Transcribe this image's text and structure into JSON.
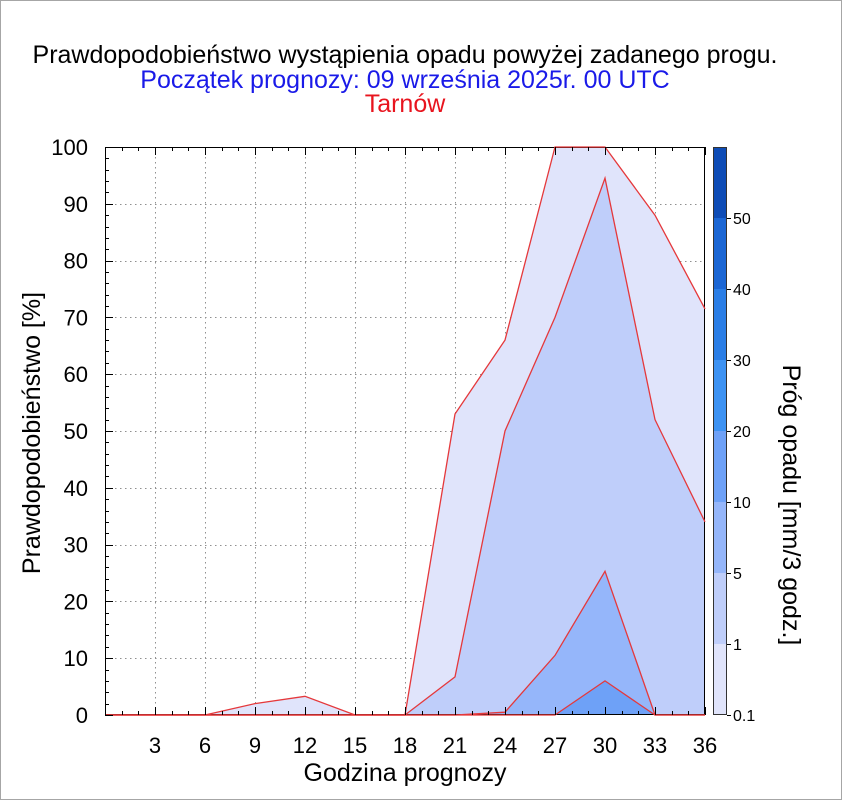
{
  "chart_data": {
    "type": "area",
    "title": "Prawdopodobieństwo wystąpienia opadu powyżej zadanego progu.",
    "subtitle": "Początek prognozy: 09 września 2025r. 00 UTC",
    "location": "Tarnów",
    "xlabel": "Godzina prognozy",
    "ylabel": "Prawdopodobieństwo [%]",
    "xlim": [
      0,
      36
    ],
    "ylim": [
      0,
      100
    ],
    "x_ticks": [
      3,
      6,
      9,
      12,
      15,
      18,
      21,
      24,
      27,
      30,
      33,
      36
    ],
    "y_ticks": [
      0,
      10,
      20,
      30,
      40,
      50,
      60,
      70,
      80,
      90,
      100
    ],
    "grid": true,
    "x": [
      0,
      3,
      6,
      9,
      12,
      15,
      18,
      21,
      24,
      27,
      30,
      33,
      36
    ],
    "series": [
      {
        "threshold": 0.1,
        "values": [
          0,
          0,
          0,
          2,
          3.3,
          0,
          0,
          53,
          66,
          100,
          100,
          88,
          71.5
        ]
      },
      {
        "threshold": 1,
        "values": [
          0,
          0,
          0,
          0,
          0,
          0,
          0,
          6.7,
          50,
          70,
          94.5,
          52,
          34
        ]
      },
      {
        "threshold": 5,
        "values": [
          0,
          0,
          0,
          0,
          0,
          0,
          0,
          0,
          0.5,
          10.5,
          25.3,
          0,
          0
        ]
      },
      {
        "threshold": 10,
        "values": [
          0,
          0,
          0,
          0,
          0,
          0,
          0,
          0,
          0,
          0,
          6,
          0,
          0
        ]
      }
    ],
    "colorbar": {
      "label": "Próg opadu [mm/3 godz.]",
      "position": "right",
      "ticks": [
        "0.1",
        "1",
        "5",
        "10",
        "20",
        "30",
        "40",
        "50"
      ],
      "colors": [
        "#e0e4fb",
        "#bfcefa",
        "#95b6fa",
        "#6ea1f7",
        "#3d92f2",
        "#2a7ee6",
        "#1b66d4",
        "#0e4cb6"
      ]
    }
  },
  "colors": {
    "title": "#000000",
    "subtitle": "#1a1ae8",
    "location": "#e8141e",
    "series_line": "#e5383b",
    "page_border": "#a6a6a6"
  }
}
